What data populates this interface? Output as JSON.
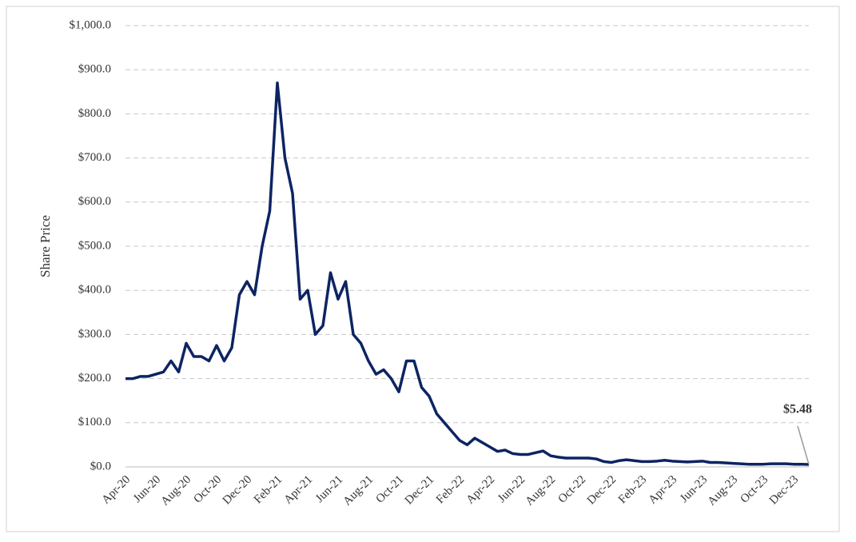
{
  "chart_data": {
    "type": "line",
    "y_label": "Share Price",
    "categories": [
      "Apr-20",
      null,
      null,
      null,
      "Jun-20",
      null,
      null,
      null,
      "Aug-20",
      null,
      null,
      null,
      "Oct-20",
      null,
      null,
      null,
      "Dec-20",
      null,
      null,
      null,
      "Feb-21",
      null,
      null,
      null,
      "Apr-21",
      null,
      null,
      null,
      "Jun-21",
      null,
      null,
      null,
      "Aug-21",
      null,
      null,
      null,
      "Oct-21",
      null,
      null,
      null,
      "Dec-21",
      null,
      null,
      null,
      "Feb-22",
      null,
      null,
      null,
      "Apr-22",
      null,
      null,
      null,
      "Jun-22",
      null,
      null,
      null,
      "Aug-22",
      null,
      null,
      null,
      "Oct-22",
      null,
      null,
      null,
      "Dec-22",
      null,
      null,
      null,
      "Feb-23",
      null,
      null,
      null,
      "Apr-23",
      null,
      null,
      null,
      "Jun-23",
      null,
      null,
      null,
      "Aug-23",
      null,
      null,
      null,
      "Oct-23",
      null,
      null,
      null,
      "Dec-23",
      null,
      null
    ],
    "values": [
      200,
      200,
      205,
      205,
      210,
      215,
      240,
      215,
      280,
      250,
      250,
      240,
      275,
      240,
      270,
      390,
      420,
      390,
      500,
      580,
      870,
      700,
      620,
      380,
      400,
      300,
      320,
      440,
      380,
      420,
      300,
      280,
      240,
      210,
      220,
      200,
      170,
      240,
      240,
      180,
      160,
      120,
      100,
      80,
      60,
      50,
      65,
      55,
      45,
      35,
      38,
      30,
      28,
      28,
      32,
      36,
      25,
      22,
      20,
      20,
      20,
      20,
      18,
      12,
      10,
      14,
      16,
      14,
      12,
      12,
      13,
      15,
      13,
      12,
      11,
      12,
      13,
      10,
      10,
      9,
      8,
      7,
      6,
      6,
      6,
      7,
      7,
      7,
      6,
      6,
      5.48
    ],
    "value_labels": [
      null,
      null,
      null,
      null,
      null,
      null,
      null,
      null,
      null,
      null,
      null,
      null,
      null,
      null,
      null,
      null,
      null,
      null,
      null,
      null,
      null,
      null,
      null,
      null,
      null,
      null,
      null,
      null,
      null,
      null,
      null,
      null,
      null,
      null,
      null,
      null,
      null,
      null,
      null,
      null,
      null,
      null,
      null,
      null,
      null,
      null,
      null,
      null,
      null,
      null,
      null,
      null,
      null,
      null,
      null,
      null,
      null,
      null,
      null,
      null,
      null,
      null,
      null,
      null,
      null,
      null,
      null,
      null,
      null,
      null,
      null,
      null,
      null,
      null,
      null,
      null,
      null,
      null,
      null,
      null,
      null,
      null,
      null,
      null,
      null,
      null,
      null,
      null,
      null,
      null,
      "$5.48"
    ],
    "color": "#0d2463",
    "ylim": [
      0,
      1000
    ],
    "yticks": [
      {
        "value": 0,
        "label": "$0.0"
      },
      {
        "value": 100,
        "label": "$100.0"
      },
      {
        "value": 200,
        "label": "$200.0"
      },
      {
        "value": 300,
        "label": "$300.0"
      },
      {
        "value": 400,
        "label": "$400.0"
      },
      {
        "value": 500,
        "label": "$500.0"
      },
      {
        "value": 600,
        "label": "$600.0"
      },
      {
        "value": 700,
        "label": "$700.0"
      },
      {
        "value": 800,
        "label": "$800.0"
      },
      {
        "value": 900,
        "label": "$900.0"
      },
      {
        "value": 1000,
        "label": "$1,000.0"
      }
    ],
    "grid": true
  }
}
